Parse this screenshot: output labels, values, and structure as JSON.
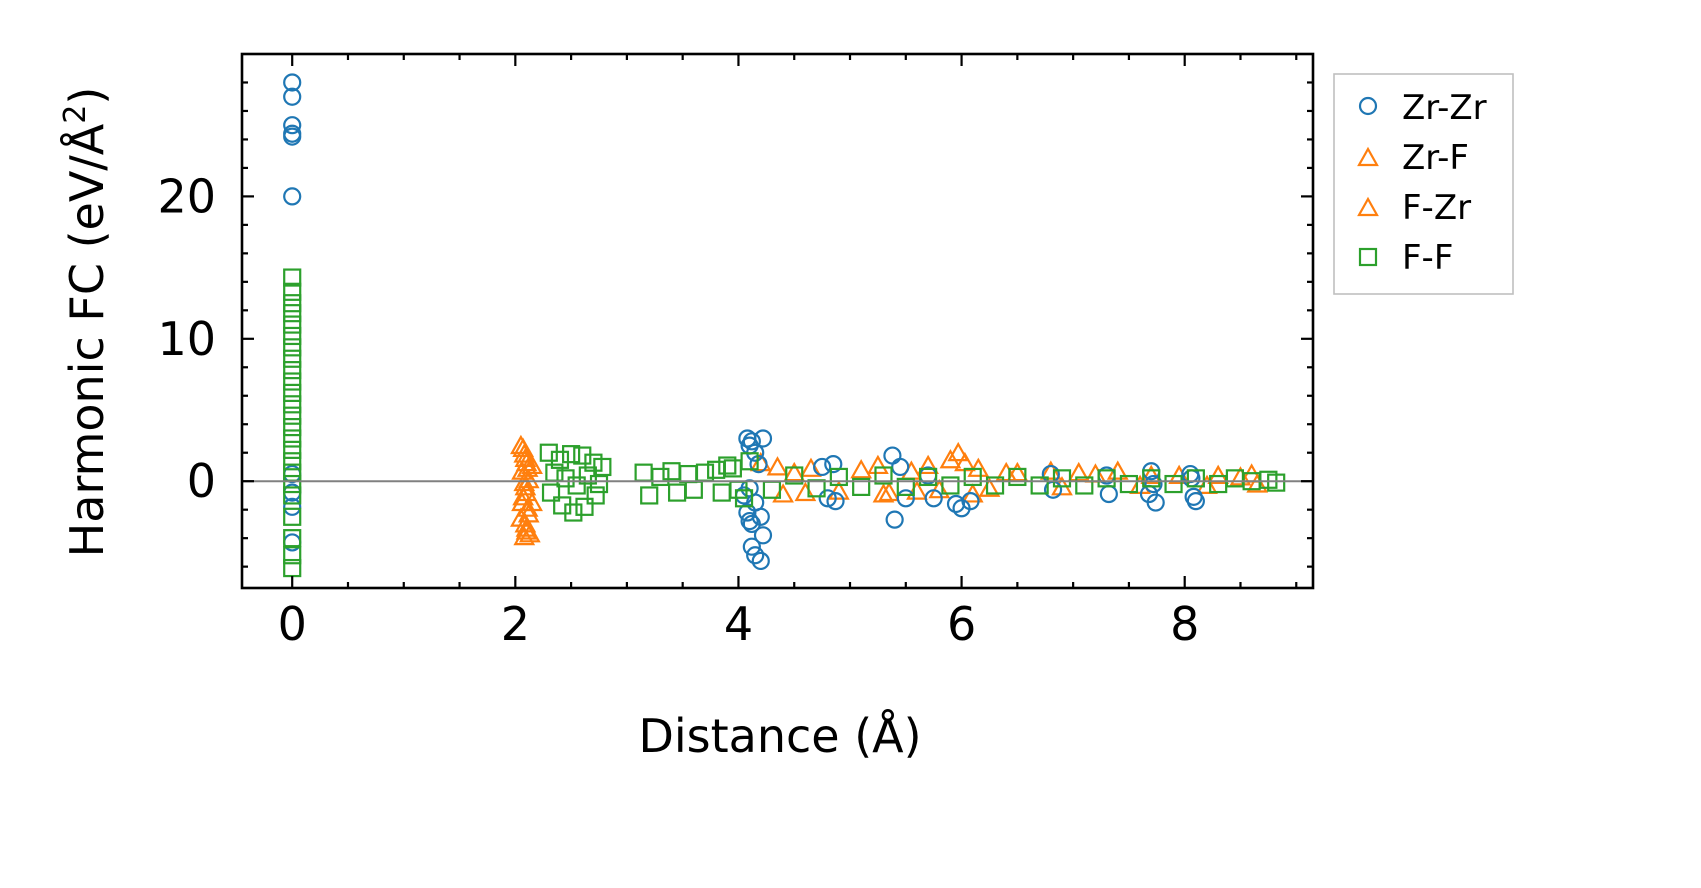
{
  "chart_data": {
    "type": "scatter",
    "xlabel": "Distance (Å)",
    "ylabel_main": "Harmonic FC (eV/Å",
    "ylabel_sup": "2",
    "ylabel_close": ")",
    "xlim": [
      -0.45,
      9.15
    ],
    "ylim": [
      -7.5,
      30
    ],
    "xticks": [
      0,
      2,
      4,
      6,
      8
    ],
    "xtick_labels": [
      "0",
      "2",
      "4",
      "6",
      "8"
    ],
    "yticks": [
      0,
      10,
      20
    ],
    "ytick_labels": [
      "0",
      "10",
      "20"
    ],
    "grid": false,
    "reference_line_y": 0,
    "legend_position": "outside-right-top",
    "colors": {
      "Zr-Zr": "#1f77b4",
      "Zr-F": "#ff7f0e",
      "F-Zr": "#ff7f0e",
      "F-F": "#2ca02c",
      "axis": "#000000",
      "zero_line": "#808080"
    },
    "series": [
      {
        "name": "Zr-Zr",
        "marker": "circle",
        "points": [
          [
            0,
            28.0
          ],
          [
            0,
            27.0
          ],
          [
            0,
            25.0
          ],
          [
            0,
            24.4
          ],
          [
            0,
            24.2
          ],
          [
            0,
            20.0
          ],
          [
            0,
            0.5
          ],
          [
            0,
            -0.8
          ],
          [
            0,
            -1.8
          ],
          [
            0,
            -4.3
          ],
          [
            4.08,
            3.0
          ],
          [
            4.1,
            2.5
          ],
          [
            4.12,
            2.8
          ],
          [
            4.15,
            2.0
          ],
          [
            4.18,
            1.2
          ],
          [
            4.22,
            3.0
          ],
          [
            4.05,
            -1.0
          ],
          [
            4.08,
            -2.2
          ],
          [
            4.1,
            -2.8
          ],
          [
            4.12,
            -3.0
          ],
          [
            4.15,
            -1.5
          ],
          [
            4.2,
            -2.5
          ],
          [
            4.22,
            -3.8
          ],
          [
            4.12,
            -4.6
          ],
          [
            4.15,
            -5.2
          ],
          [
            4.2,
            -5.6
          ],
          [
            4.1,
            -0.5
          ],
          [
            4.75,
            1.0
          ],
          [
            4.8,
            -1.2
          ],
          [
            4.85,
            1.2
          ],
          [
            4.87,
            -1.4
          ],
          [
            5.38,
            1.8
          ],
          [
            5.4,
            -2.7
          ],
          [
            5.45,
            1.0
          ],
          [
            5.5,
            -1.2
          ],
          [
            5.7,
            0.4
          ],
          [
            5.75,
            -1.2
          ],
          [
            5.95,
            -1.6
          ],
          [
            6.0,
            -1.9
          ],
          [
            6.08,
            -1.4
          ],
          [
            6.8,
            0.5
          ],
          [
            6.82,
            -0.6
          ],
          [
            7.3,
            0.4
          ],
          [
            7.32,
            -0.9
          ],
          [
            7.7,
            0.7
          ],
          [
            7.72,
            -0.2
          ],
          [
            7.74,
            -1.5
          ],
          [
            7.68,
            -0.9
          ],
          [
            8.05,
            0.5
          ],
          [
            8.08,
            -1.1
          ],
          [
            8.1,
            -1.4
          ],
          [
            8.06,
            0.2
          ]
        ]
      },
      {
        "name": "Zr-F",
        "marker": "triangle",
        "points": [
          [
            2.05,
            2.4
          ],
          [
            2.08,
            1.8
          ],
          [
            2.1,
            1.2
          ],
          [
            2.06,
            0.6
          ],
          [
            2.12,
            0.0
          ],
          [
            2.09,
            -0.5
          ],
          [
            2.07,
            -1.2
          ],
          [
            2.11,
            -2.0
          ],
          [
            2.05,
            -2.7
          ],
          [
            2.1,
            -3.4
          ],
          [
            2.13,
            -3.8
          ],
          [
            2.08,
            -4.0
          ],
          [
            2.15,
            1.0
          ],
          [
            2.15,
            -1.6
          ],
          [
            4.2,
            1.2
          ],
          [
            4.35,
            0.9
          ],
          [
            4.5,
            0.5
          ],
          [
            4.65,
            0.8
          ],
          [
            4.9,
            -0.8
          ],
          [
            5.25,
            1.0
          ],
          [
            5.35,
            -0.9
          ],
          [
            5.55,
            0.6
          ],
          [
            5.7,
            1.0
          ],
          [
            5.8,
            -0.7
          ],
          [
            5.9,
            1.4
          ],
          [
            5.97,
            1.9
          ],
          [
            6.03,
            1.2
          ],
          [
            6.15,
            0.8
          ],
          [
            6.25,
            -0.6
          ],
          [
            6.5,
            0.5
          ],
          [
            6.8,
            0.6
          ],
          [
            7.05,
            0.5
          ],
          [
            7.4,
            0.6
          ],
          [
            7.7,
            0.3
          ],
          [
            7.95,
            0.3
          ],
          [
            8.3,
            0.3
          ],
          [
            8.6,
            0.4
          ],
          [
            8.65,
            -0.3
          ]
        ]
      },
      {
        "name": "F-Zr",
        "marker": "triangle",
        "points": [
          [
            2.07,
            2.2
          ],
          [
            2.09,
            1.5
          ],
          [
            2.11,
            0.8
          ],
          [
            2.08,
            -0.2
          ],
          [
            2.1,
            -0.9
          ],
          [
            2.06,
            -1.6
          ],
          [
            2.12,
            -2.4
          ],
          [
            2.09,
            -3.1
          ],
          [
            2.1,
            -3.6
          ],
          [
            4.4,
            -1.0
          ],
          [
            4.6,
            -0.9
          ],
          [
            5.1,
            0.7
          ],
          [
            5.3,
            -1.0
          ],
          [
            5.6,
            -0.8
          ],
          [
            6.1,
            -1.0
          ],
          [
            6.4,
            0.5
          ],
          [
            6.9,
            -0.5
          ],
          [
            7.2,
            0.4
          ],
          [
            7.6,
            -0.4
          ],
          [
            8.2,
            -0.4
          ],
          [
            8.5,
            0.2
          ]
        ]
      },
      {
        "name": "F-F",
        "marker": "square",
        "points": [
          [
            0,
            14.3
          ],
          [
            0,
            13.3
          ],
          [
            0,
            12.5
          ],
          [
            0,
            11.8
          ],
          [
            0,
            11.0
          ],
          [
            0,
            10.2
          ],
          [
            0,
            9.4
          ],
          [
            0,
            8.6
          ],
          [
            0,
            7.8
          ],
          [
            0,
            7.0
          ],
          [
            0,
            6.2
          ],
          [
            0,
            5.4
          ],
          [
            0,
            4.6
          ],
          [
            0,
            3.8
          ],
          [
            0,
            3.0
          ],
          [
            0,
            2.2
          ],
          [
            0,
            1.4
          ],
          [
            0,
            0.6
          ],
          [
            0,
            -0.2
          ],
          [
            0,
            -1.0
          ],
          [
            0,
            -2.5
          ],
          [
            0,
            -4.0
          ],
          [
            0,
            -5.2
          ],
          [
            0,
            -6.1
          ],
          [
            2.3,
            2.0
          ],
          [
            2.4,
            1.5
          ],
          [
            2.5,
            1.9
          ],
          [
            2.6,
            1.8
          ],
          [
            2.7,
            1.3
          ],
          [
            2.78,
            1.0
          ],
          [
            2.32,
            -0.8
          ],
          [
            2.42,
            -1.7
          ],
          [
            2.52,
            -2.2
          ],
          [
            2.62,
            -1.8
          ],
          [
            2.72,
            -1.0
          ],
          [
            2.35,
            0.6
          ],
          [
            2.45,
            0.2
          ],
          [
            2.55,
            -0.3
          ],
          [
            2.65,
            0.4
          ],
          [
            2.75,
            -0.2
          ],
          [
            3.15,
            0.6
          ],
          [
            3.2,
            -1.0
          ],
          [
            3.3,
            0.3
          ],
          [
            3.4,
            0.7
          ],
          [
            3.45,
            -0.8
          ],
          [
            3.55,
            0.5
          ],
          [
            3.6,
            -0.6
          ],
          [
            3.7,
            0.6
          ],
          [
            3.8,
            0.8
          ],
          [
            3.85,
            -0.8
          ],
          [
            3.9,
            1.1
          ],
          [
            3.95,
            0.9
          ],
          [
            4.0,
            -0.6
          ],
          [
            4.05,
            -1.2
          ],
          [
            4.1,
            1.4
          ],
          [
            4.3,
            -0.6
          ],
          [
            4.5,
            0.4
          ],
          [
            4.7,
            -0.5
          ],
          [
            4.9,
            0.3
          ],
          [
            5.1,
            -0.4
          ],
          [
            5.3,
            0.4
          ],
          [
            5.5,
            -0.4
          ],
          [
            5.7,
            0.3
          ],
          [
            5.9,
            -0.3
          ],
          [
            6.1,
            0.3
          ],
          [
            6.3,
            -0.3
          ],
          [
            6.5,
            0.3
          ],
          [
            6.7,
            -0.3
          ],
          [
            6.9,
            0.2
          ],
          [
            7.1,
            -0.3
          ],
          [
            7.3,
            0.2
          ],
          [
            7.5,
            -0.2
          ],
          [
            7.7,
            0.2
          ],
          [
            7.9,
            -0.2
          ],
          [
            8.1,
            0.2
          ],
          [
            8.3,
            -0.2
          ],
          [
            8.45,
            0.2
          ],
          [
            8.6,
            0.0
          ],
          [
            8.75,
            0.1
          ],
          [
            8.82,
            -0.1
          ]
        ]
      }
    ]
  }
}
